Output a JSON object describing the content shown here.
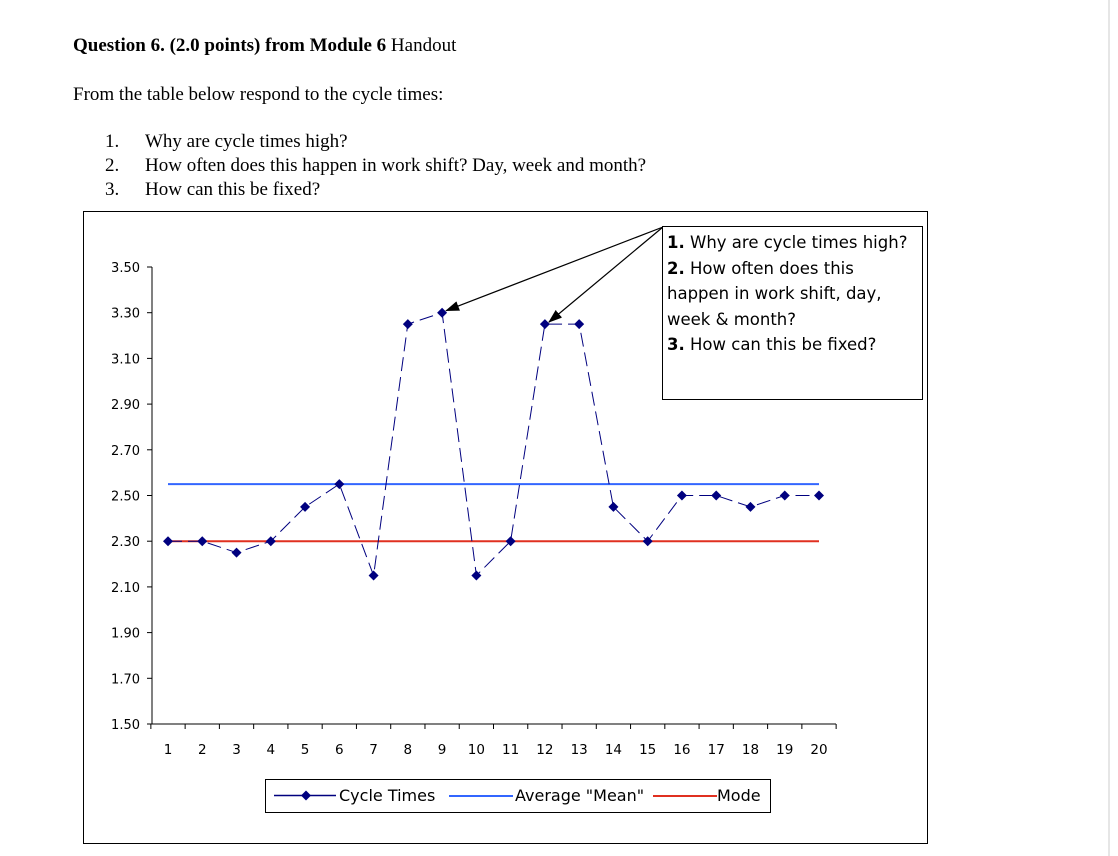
{
  "question": {
    "title_bold": "Question 6. (2.0 points) from Module 6",
    "title_rest": "Handout",
    "intro": "From the table below respond to the cycle times:",
    "items": [
      {
        "num": "1.",
        "text": "Why are cycle times high?"
      },
      {
        "num": "2.",
        "text": "How often does this happen in work shift? Day, week and month?"
      },
      {
        "num": "3.",
        "text": "How can this be fixed?"
      }
    ]
  },
  "annotation": {
    "lines": [
      {
        "num": "1.",
        "text": "Why are cycle times high?"
      },
      {
        "num": "2.",
        "text": "How often does this happen in work shift, day, week & month?"
      },
      {
        "num": "3.",
        "text": "How can this be fixed?"
      }
    ]
  },
  "chart_data": {
    "type": "line",
    "title": "",
    "xlabel": "",
    "ylabel": "",
    "x": [
      1,
      2,
      3,
      4,
      5,
      6,
      7,
      8,
      9,
      10,
      11,
      12,
      13,
      14,
      15,
      16,
      17,
      18,
      19,
      20
    ],
    "x_tick_labels": [
      "1",
      "2",
      "3",
      "4",
      "5",
      "6",
      "7",
      "8",
      "9",
      "10",
      "11",
      "12",
      "13",
      "14",
      "15",
      "16",
      "17",
      "18",
      "19",
      "20"
    ],
    "y_tick_labels": [
      "3.50",
      "3.30",
      "3.10",
      "2.90",
      "2.70",
      "2.50",
      "2.30",
      "2.10",
      "1.90",
      "1.70",
      "1.50"
    ],
    "y_ticks": [
      3.5,
      3.3,
      3.1,
      2.9,
      2.7,
      2.5,
      2.3,
      2.1,
      1.9,
      1.7,
      1.5
    ],
    "ylim": [
      1.5,
      3.5
    ],
    "grid": false,
    "legend_position": "bottom",
    "series": [
      {
        "name": "Cycle Times",
        "color": "#00007f",
        "marker": "diamond",
        "style": "dashed",
        "values": [
          2.3,
          2.3,
          2.25,
          2.3,
          2.45,
          2.55,
          2.15,
          3.25,
          3.3,
          2.15,
          2.3,
          3.25,
          3.25,
          2.45,
          2.3,
          2.5,
          2.5,
          2.45,
          2.5,
          2.5
        ]
      },
      {
        "name": "Average \"Mean\"",
        "color": "#3366ff",
        "marker": "none",
        "style": "solid",
        "values": [
          2.55,
          2.55,
          2.55,
          2.55,
          2.55,
          2.55,
          2.55,
          2.55,
          2.55,
          2.55,
          2.55,
          2.55,
          2.55,
          2.55,
          2.55,
          2.55,
          2.55,
          2.55,
          2.55,
          2.55
        ]
      },
      {
        "name": "Mode",
        "color": "#e03020",
        "marker": "none",
        "style": "solid",
        "values": [
          2.3,
          2.3,
          2.3,
          2.3,
          2.3,
          2.3,
          2.3,
          2.3,
          2.3,
          2.3,
          2.3,
          2.3,
          2.3,
          2.3,
          2.3,
          2.3,
          2.3,
          2.3,
          2.3,
          2.3
        ]
      }
    ],
    "arrows_point_to_x": [
      9,
      12
    ]
  }
}
